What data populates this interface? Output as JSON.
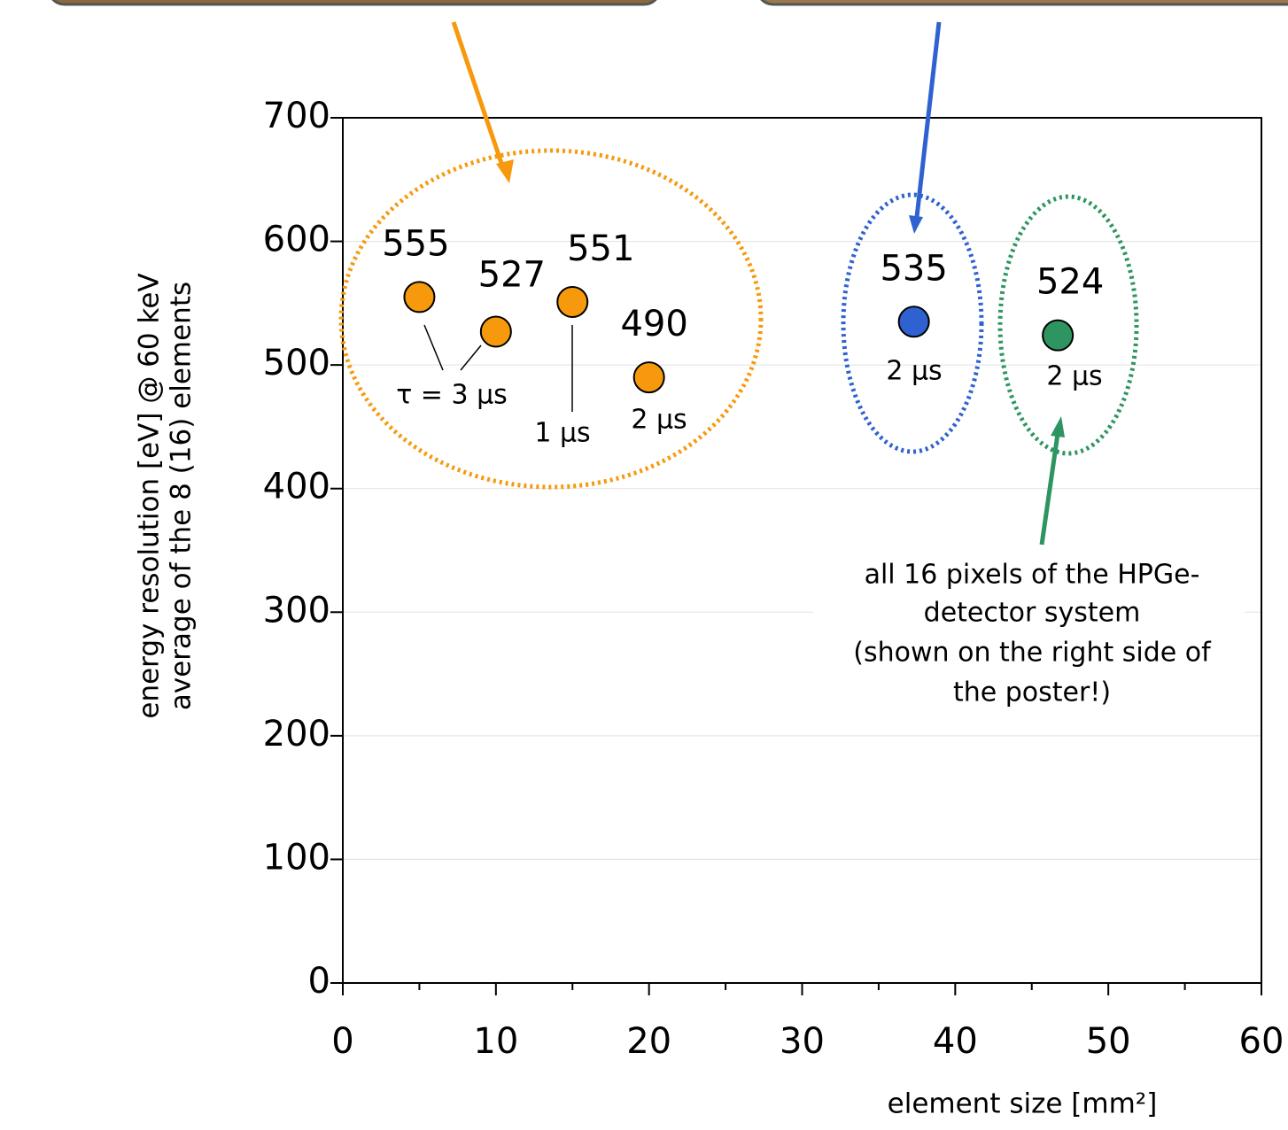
{
  "chart_data": {
    "type": "scatter",
    "x_label": "element size [mm²]",
    "y_label": [
      "energy resolution [eV] @ 60 keV",
      "average of the 8 (16) elements"
    ],
    "series": [
      {
        "color": "#f7990c",
        "x": [
          5,
          10,
          15,
          20
        ],
        "values": [
          555,
          527,
          551,
          490
        ]
      },
      {
        "color": "#2f62d0",
        "x": [
          37.3
        ],
        "values": [
          535
        ]
      },
      {
        "color": "#2e9560",
        "x": [
          46.7
        ],
        "values": [
          524
        ]
      }
    ],
    "annotations": [
      "τ = 3 μs",
      "1 μs",
      "2 μs",
      "2 μs",
      "2 μs"
    ],
    "note": [
      "all 16 pixels of the HPGe-",
      "detector system",
      "(shown on the right side of",
      "the poster!)"
    ],
    "xlim": [
      0,
      60
    ],
    "xticks": [
      0,
      10,
      20,
      30,
      40,
      50,
      60
    ],
    "xminorticks": [
      5,
      15,
      25,
      35,
      45,
      55
    ],
    "ylim": [
      0,
      700
    ],
    "yticks": [
      0,
      100,
      200,
      300,
      400,
      500,
      600,
      700
    ],
    "grid": true
  }
}
